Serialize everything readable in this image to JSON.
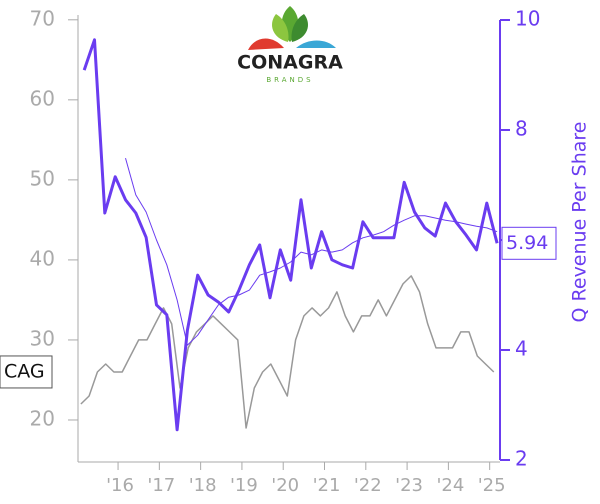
{
  "logo": {
    "name": "CONAGRA",
    "tagline": "BRANDS"
  },
  "chart_data": {
    "type": "line",
    "xlim": [
      2015.03,
      2025.25
    ],
    "xticks": [
      {
        "value": 2016,
        "label": "'16"
      },
      {
        "value": 2017,
        "label": "'17"
      },
      {
        "value": 2018,
        "label": "'18"
      },
      {
        "value": 2019,
        "label": "'19"
      },
      {
        "value": 2020,
        "label": "'20"
      },
      {
        "value": 2021,
        "label": "'21"
      },
      {
        "value": 2022,
        "label": "'22"
      },
      {
        "value": 2023,
        "label": "'23"
      },
      {
        "value": 2024,
        "label": "'24"
      },
      {
        "value": 2025,
        "label": "'25"
      }
    ],
    "ylim": [
      14.75,
      70.6
    ],
    "yticks": [
      20,
      30,
      40,
      50,
      60,
      70
    ],
    "y2lim": [
      2,
      10
    ],
    "y2ticks": [
      2,
      4,
      6,
      8,
      10
    ],
    "y2label": "Q Revenue Per Share",
    "series": [
      {
        "name": "CAG",
        "color": "#999999",
        "x": [
          2015.1,
          2015.3,
          2015.5,
          2015.7,
          2015.9,
          2016.1,
          2016.3,
          2016.5,
          2016.7,
          2016.9,
          2017.1,
          2017.3,
          2017.5,
          2017.7,
          2017.9,
          2018.1,
          2018.3,
          2018.5,
          2018.7,
          2018.9,
          2019.1,
          2019.3,
          2019.5,
          2019.7,
          2019.9,
          2020.1,
          2020.3,
          2020.5,
          2020.7,
          2020.9,
          2021.1,
          2021.3,
          2021.5,
          2021.7,
          2021.9,
          2022.1,
          2022.3,
          2022.5,
          2022.7,
          2022.9,
          2023.1,
          2023.3,
          2023.5,
          2023.7,
          2023.9,
          2024.1,
          2024.3,
          2024.5,
          2024.7,
          2024.9,
          2025.1
        ],
        "values": [
          22,
          23,
          26,
          27,
          26,
          26,
          28,
          30,
          30,
          32,
          34,
          32,
          24,
          29,
          31,
          32,
          33,
          32,
          31,
          30,
          19,
          24,
          26,
          27,
          25,
          23,
          30,
          33,
          34,
          33,
          34,
          36,
          33,
          31,
          33,
          33,
          35,
          33,
          35,
          37,
          38,
          36,
          32,
          29,
          29,
          29,
          31,
          31,
          28,
          27,
          26
        ]
      },
      {
        "color": "#6a3cf0",
        "axis": "y2",
        "x": [
          2015.18,
          2015.43,
          2015.68,
          2015.93,
          2016.18,
          2016.43,
          2016.68,
          2016.93,
          2017.18,
          2017.43,
          2017.68,
          2017.93,
          2018.18,
          2018.43,
          2018.68,
          2018.93,
          2019.18,
          2019.43,
          2019.68,
          2019.93,
          2020.18,
          2020.43,
          2020.68,
          2020.93,
          2021.18,
          2021.43,
          2021.68,
          2021.93,
          2022.18,
          2022.43,
          2022.68,
          2022.93,
          2023.18,
          2023.43,
          2023.68,
          2023.93,
          2024.18,
          2024.43,
          2024.68,
          2024.93,
          2025.18
        ],
        "values": [
          9.09,
          9.64,
          6.49,
          7.15,
          6.73,
          6.49,
          6.05,
          4.82,
          4.64,
          2.55,
          4.36,
          5.36,
          5.0,
          4.87,
          4.69,
          5.09,
          5.55,
          5.91,
          4.95,
          5.82,
          5.27,
          6.73,
          5.49,
          6.15,
          5.64,
          5.55,
          5.49,
          6.33,
          6.04,
          6.04,
          6.04,
          7.05,
          6.51,
          6.22,
          6.07,
          6.67,
          6.33,
          6.09,
          5.82,
          6.67,
          5.94
        ]
      },
      {
        "color": "#6a3cf0",
        "axis": "y2",
        "x": [
          2016.18,
          2016.43,
          2016.68,
          2016.93,
          2017.18,
          2017.43,
          2017.68,
          2017.93,
          2018.18,
          2018.43,
          2018.68,
          2018.93,
          2019.18,
          2019.43,
          2019.68,
          2019.93,
          2020.18,
          2020.43,
          2020.68,
          2020.93,
          2021.18,
          2021.43,
          2021.68,
          2021.93,
          2022.18,
          2022.43,
          2022.68,
          2022.93,
          2023.18,
          2023.43,
          2023.68,
          2023.93,
          2024.18,
          2024.43,
          2024.68,
          2024.93,
          2025.18
        ],
        "values": [
          7.49,
          6.82,
          6.51,
          6.0,
          5.55,
          4.91,
          4.09,
          4.27,
          4.55,
          4.82,
          4.96,
          5.0,
          5.09,
          5.36,
          5.42,
          5.49,
          5.6,
          5.78,
          5.73,
          5.82,
          5.78,
          5.82,
          5.95,
          6.04,
          6.09,
          6.15,
          6.27,
          6.36,
          6.44,
          6.44,
          6.4,
          6.36,
          6.33,
          6.29,
          6.25,
          6.22,
          6.15
        ]
      }
    ]
  }
}
